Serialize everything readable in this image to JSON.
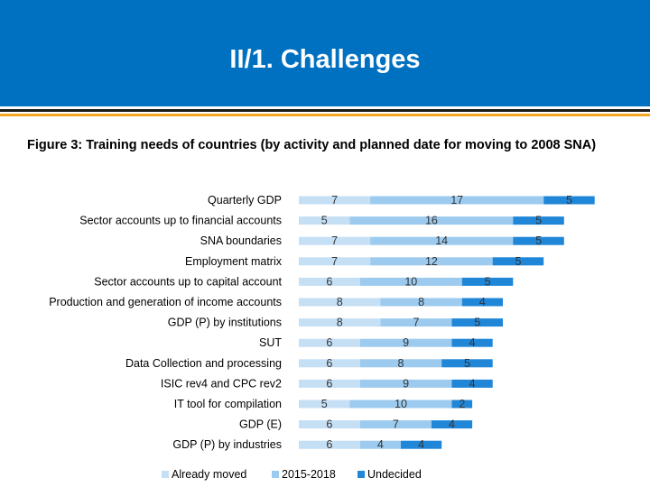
{
  "header": {
    "title": "II/1. Challenges"
  },
  "figure": {
    "caption": "Figure 3: Training needs of countries (by activity and planned date for moving to 2008 SNA)"
  },
  "chart_data": {
    "type": "bar",
    "orientation": "horizontal",
    "stacked": true,
    "categories": [
      "Quarterly GDP",
      "Sector accounts up to financial accounts",
      "SNA boundaries",
      "Employment matrix",
      "Sector accounts up to capital account",
      "Production and generation of income accounts",
      "GDP (P) by institutions",
      "SUT",
      "Data Collection and processing",
      "ISIC rev4 and CPC rev2",
      "IT tool for compilation",
      "GDP (E)",
      "GDP (P) by industries"
    ],
    "series": [
      {
        "name": "Already moved",
        "color": "#c5dff5",
        "values": [
          7,
          5,
          7,
          7,
          6,
          8,
          8,
          6,
          6,
          6,
          5,
          6,
          6
        ]
      },
      {
        "name": "2015-2018",
        "color": "#9ccbef",
        "values": [
          17,
          16,
          14,
          12,
          10,
          8,
          7,
          9,
          8,
          9,
          10,
          7,
          4
        ]
      },
      {
        "name": "Undecided",
        "color": "#1f86d8",
        "values": [
          5,
          5,
          5,
          5,
          5,
          4,
          5,
          4,
          5,
          4,
          2,
          4,
          4
        ]
      }
    ],
    "data_labels": true,
    "gridlines": false,
    "legend_position": "bottom",
    "xlabel": "",
    "ylabel": ""
  }
}
